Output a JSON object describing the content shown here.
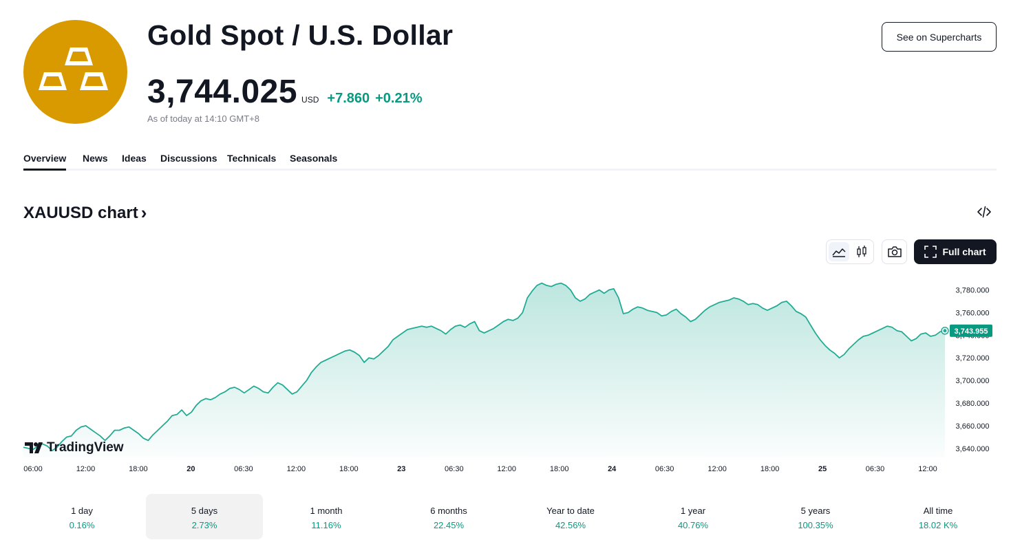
{
  "header": {
    "title": "Gold Spot / U.S. Dollar",
    "price": "3,744.025",
    "currency": "USD",
    "change_abs": "+7.860",
    "change_pct": "+0.21%",
    "as_of": "As of today at 14:10 GMT+8",
    "supercharts_label": "See on Supercharts",
    "logo_icon": "gold-bars-icon"
  },
  "tabs": [
    {
      "label": "Overview",
      "active": true
    },
    {
      "label": "News"
    },
    {
      "label": "Ideas"
    },
    {
      "label": "Discussions"
    },
    {
      "label": "Technicals"
    },
    {
      "label": "Seasonals"
    }
  ],
  "chart_section": {
    "title": "XAUUSD chart",
    "embed_icon": "code-embed-icon",
    "line_icon": "area-chart-icon",
    "candle_icon": "candlestick-icon",
    "camera_icon": "camera-icon",
    "full_chart_label": "Full chart",
    "full_chart_icon": "fullscreen-icon",
    "watermark": "TradingView"
  },
  "chart_data": {
    "type": "area",
    "title": "",
    "x_tick_labels": [
      "06:00",
      "12:00",
      "18:00",
      "20",
      "06:30",
      "12:00",
      "18:00",
      "23",
      "06:30",
      "12:00",
      "18:00",
      "24",
      "06:30",
      "12:00",
      "18:00",
      "25",
      "06:30",
      "12:00"
    ],
    "bold_x_ticks": [
      "20",
      "23",
      "24",
      "25"
    ],
    "y_ticks": [
      3640,
      3660,
      3680,
      3700,
      3720,
      3740,
      3760,
      3780
    ],
    "y_tick_labels": [
      "3,640.000",
      "3,660.000",
      "3,680.000",
      "3,700.000",
      "3,720.000",
      "3,740.000",
      "3,760.000",
      "3,780.000"
    ],
    "ylim": [
      3632,
      3790
    ],
    "last_value_label": "3,743.955",
    "last_value": 3743.955,
    "line_color": "#22ab94",
    "label_color": "#089981",
    "series": [
      {
        "values": [
          3641,
          3640,
          3639,
          3642,
          3644,
          3642,
          3638,
          3641,
          3646,
          3650,
          3651,
          3656,
          3659,
          3660,
          3657,
          3654,
          3651,
          3647,
          3651,
          3656,
          3656,
          3658,
          3659,
          3656,
          3653,
          3649,
          3647,
          3652,
          3656,
          3660,
          3664,
          3669,
          3670,
          3674,
          3669,
          3672,
          3678,
          3682,
          3684,
          3683,
          3685,
          3688,
          3690,
          3693,
          3694,
          3692,
          3689,
          3692,
          3695,
          3693,
          3690,
          3689,
          3694,
          3698,
          3696,
          3692,
          3688,
          3690,
          3695,
          3700,
          3707,
          3712,
          3716,
          3718,
          3720,
          3722,
          3724,
          3726,
          3727,
          3725,
          3722,
          3716,
          3720,
          3719,
          3722,
          3726,
          3730,
          3736,
          3739,
          3742,
          3745,
          3746,
          3747,
          3748,
          3747,
          3748,
          3746,
          3744,
          3741,
          3745,
          3748,
          3749,
          3747,
          3750,
          3752,
          3744,
          3742,
          3744,
          3746,
          3749,
          3752,
          3754,
          3753,
          3755,
          3760,
          3773,
          3779,
          3784,
          3786,
          3784,
          3783,
          3785,
          3786,
          3784,
          3780,
          3773,
          3770,
          3772,
          3776,
          3778,
          3780,
          3777,
          3780,
          3781,
          3773,
          3759,
          3760,
          3763,
          3765,
          3764,
          3762,
          3761,
          3760,
          3757,
          3758,
          3761,
          3763,
          3759,
          3756,
          3752,
          3754,
          3758,
          3762,
          3765,
          3767,
          3769,
          3770,
          3771,
          3773,
          3772,
          3770,
          3767,
          3768,
          3767,
          3764,
          3762,
          3764,
          3766,
          3769,
          3770,
          3766,
          3761,
          3759,
          3756,
          3749,
          3742,
          3736,
          3731,
          3727,
          3724,
          3720,
          3723,
          3728,
          3732,
          3736,
          3739,
          3740,
          3742,
          3744,
          3746,
          3748,
          3747,
          3744,
          3743,
          3739,
          3735,
          3737,
          3741,
          3742,
          3739,
          3740,
          3743,
          3744
        ]
      }
    ]
  },
  "periods": [
    {
      "label": "1 day",
      "value": "0.16%"
    },
    {
      "label": "5 days",
      "value": "2.73%",
      "active": true
    },
    {
      "label": "1 month",
      "value": "11.16%"
    },
    {
      "label": "6 months",
      "value": "22.45%"
    },
    {
      "label": "Year to date",
      "value": "42.56%"
    },
    {
      "label": "1 year",
      "value": "40.76%"
    },
    {
      "label": "5 years",
      "value": "100.35%"
    },
    {
      "label": "All time",
      "value": "18.02 K%"
    }
  ]
}
